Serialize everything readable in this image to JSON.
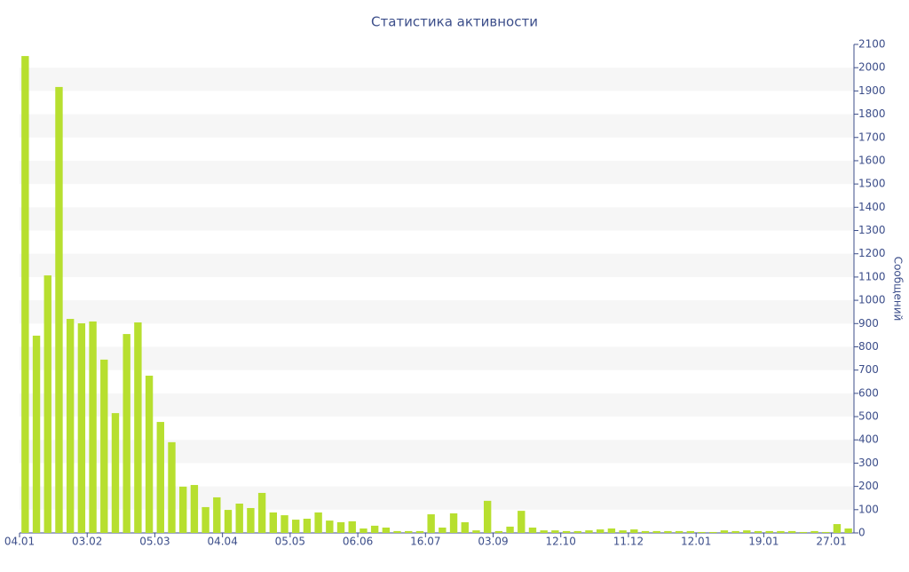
{
  "chart_data": {
    "type": "bar",
    "title": "Статистика активности",
    "y_label": "Сообщений",
    "color": "#b7df2f",
    "categories": [
      "04.01",
      null,
      null,
      null,
      null,
      null,
      "03.02",
      null,
      null,
      null,
      null,
      null,
      "05.03",
      null,
      null,
      null,
      null,
      null,
      "04.04",
      null,
      null,
      null,
      null,
      null,
      "05.05",
      null,
      null,
      null,
      null,
      null,
      "06.06",
      null,
      null,
      null,
      null,
      null,
      "16.07",
      null,
      null,
      null,
      null,
      null,
      "03.09",
      null,
      null,
      null,
      null,
      null,
      "12.10",
      null,
      null,
      null,
      null,
      null,
      "11.12",
      null,
      null,
      null,
      null,
      null,
      "12.01",
      null,
      null,
      null,
      null,
      null,
      "19.01",
      null,
      null,
      null,
      null,
      null,
      "27.01",
      null
    ],
    "values": [
      2050,
      848,
      1107,
      1917,
      920,
      901,
      909,
      745,
      515,
      855,
      905,
      676,
      477,
      390,
      199,
      206,
      111,
      153,
      99,
      126,
      107,
      172,
      88,
      76,
      57,
      61,
      88,
      53,
      46,
      50,
      19,
      31,
      23,
      8,
      8,
      8,
      80,
      23,
      84,
      46,
      11,
      138,
      8,
      27,
      95,
      23,
      11,
      11,
      8,
      8,
      11,
      15,
      19,
      11,
      15,
      8,
      8,
      8,
      8,
      8,
      4,
      4,
      11,
      8,
      11,
      8,
      8,
      8,
      8,
      4,
      8,
      4,
      38,
      19
    ],
    "ylim": [
      0,
      2100
    ],
    "yticks": [
      0,
      100,
      200,
      300,
      400,
      500,
      600,
      700,
      800,
      900,
      1000,
      1100,
      1200,
      1300,
      1400,
      1500,
      1600,
      1700,
      1800,
      1900,
      2000,
      2100
    ],
    "grid": true,
    "y_axis_side": "right"
  }
}
